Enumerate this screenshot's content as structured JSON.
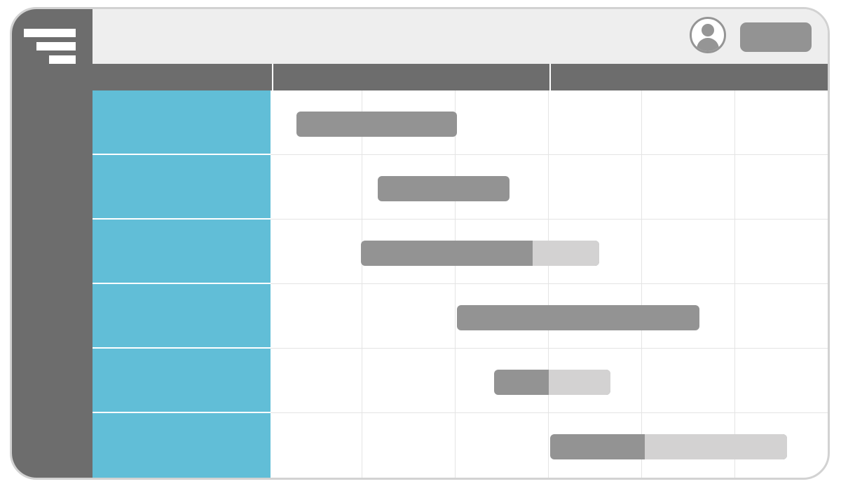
{
  "colors": {
    "sidebar": "#6d6d6d",
    "topbar": "#eeeeee",
    "task_cell": "#61bed7",
    "bar_done": "#939393",
    "bar_remaining": "#d3d2d2",
    "grid_line": "#e4e4e4"
  },
  "icons": {
    "menu": "menu-icon",
    "user": "user-avatar-icon"
  },
  "timeline": {
    "header_columns": 3,
    "tasks": [
      {
        "start_col": 0.28,
        "end_col": 2.0,
        "progress": 1.0
      },
      {
        "start_col": 1.15,
        "end_col": 2.56,
        "progress": 1.0
      },
      {
        "start_col": 0.97,
        "end_col": 3.53,
        "progress": 0.72
      },
      {
        "start_col": 2.0,
        "end_col": 4.6,
        "progress": 1.0
      },
      {
        "start_col": 2.4,
        "end_col": 3.65,
        "progress": 0.47
      },
      {
        "start_col": 3.0,
        "end_col": 5.54,
        "progress": 0.4
      }
    ]
  }
}
